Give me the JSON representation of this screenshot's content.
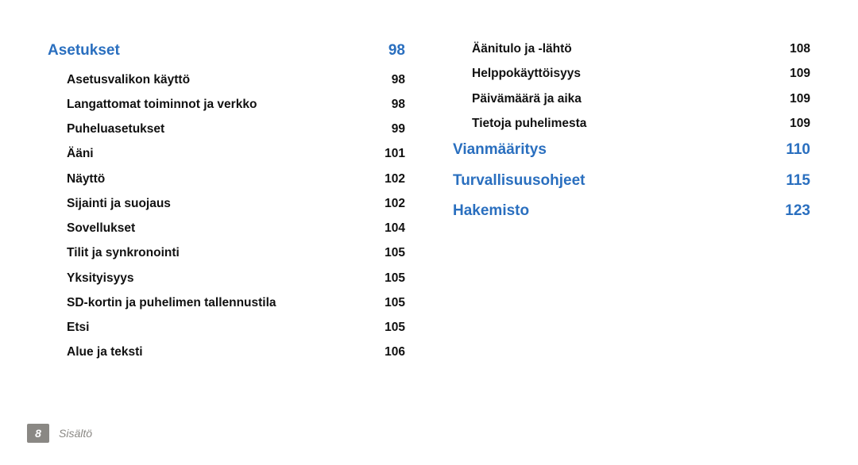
{
  "left": {
    "sections": [
      {
        "type": "section",
        "first": true,
        "label": "Asetukset",
        "page": "98"
      },
      {
        "type": "sub",
        "label": "Asetusvalikon käyttö",
        "page": "98"
      },
      {
        "type": "sub",
        "label": "Langattomat toiminnot ja verkko",
        "page": "98"
      },
      {
        "type": "sub",
        "label": "Puheluasetukset",
        "page": "99"
      },
      {
        "type": "sub",
        "label": "Ääni",
        "page": "101"
      },
      {
        "type": "sub",
        "label": "Näyttö",
        "page": "102"
      },
      {
        "type": "sub",
        "label": "Sijainti ja suojaus",
        "page": "102"
      },
      {
        "type": "sub",
        "label": "Sovellukset",
        "page": "104"
      },
      {
        "type": "sub",
        "label": "Tilit ja synkronointi",
        "page": "105"
      },
      {
        "type": "sub",
        "label": "Yksityisyys",
        "page": "105"
      },
      {
        "type": "sub",
        "label": "SD-kortin ja puhelimen tallennustila",
        "page": "105"
      },
      {
        "type": "sub",
        "label": "Etsi",
        "page": "105"
      },
      {
        "type": "sub",
        "label": "Alue ja teksti",
        "page": "106"
      }
    ]
  },
  "right": {
    "sections": [
      {
        "type": "sub",
        "label": "Äänitulo ja -lähtö",
        "page": "108"
      },
      {
        "type": "sub",
        "label": "Helppokäyttöisyys",
        "page": "109"
      },
      {
        "type": "sub",
        "label": "Päivämäärä ja aika",
        "page": "109"
      },
      {
        "type": "sub",
        "label": "Tietoja puhelimesta",
        "page": "109"
      },
      {
        "type": "section",
        "label": "Vianmääritys",
        "page": "110"
      },
      {
        "type": "section",
        "label": "Turvallisuusohjeet",
        "page": "115"
      },
      {
        "type": "section",
        "label": "Hakemisto",
        "page": "123"
      }
    ]
  },
  "footer": {
    "page_num": "8",
    "section": "Sisältö"
  },
  "colors": {
    "section_link": "#2a6fbf",
    "text": "#111111",
    "footer_gray": "#8a8884"
  }
}
